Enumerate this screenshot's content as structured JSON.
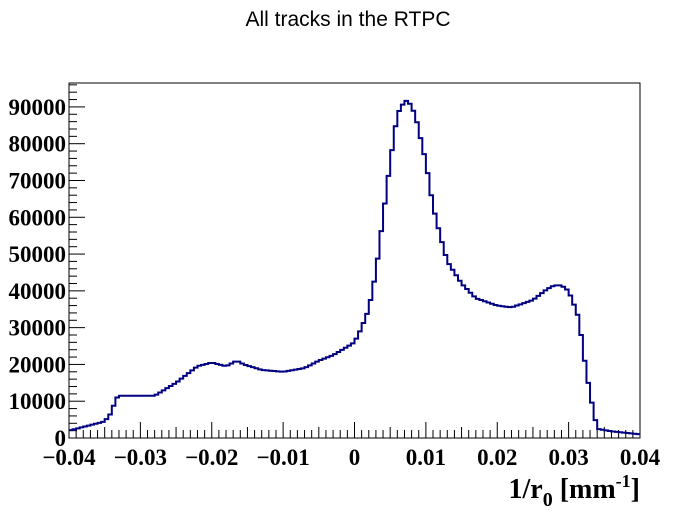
{
  "chart_data": {
    "type": "histogram",
    "title": "All tracks in the RTPC",
    "xlabel": "1/r",
    "xlabel_sub": "0",
    "xlabel_unit_open": " [mm",
    "xlabel_unit_sup": "-1",
    "xlabel_unit_close": "]",
    "ylabel": "",
    "xlim": [
      -0.04,
      0.04
    ],
    "ylim": [
      0,
      96500
    ],
    "grid": false,
    "x_ticks": [
      -0.04,
      -0.03,
      -0.02,
      -0.01,
      0,
      0.01,
      0.02,
      0.03,
      0.04
    ],
    "x_tick_labels": [
      "−0.04",
      "−0.03",
      "−0.02",
      "−0.01",
      "0",
      "0.01",
      "0.02",
      "0.03",
      "0.04"
    ],
    "y_ticks": [
      0,
      10000,
      20000,
      30000,
      40000,
      50000,
      60000,
      70000,
      80000,
      90000
    ],
    "y_tick_labels": [
      "0",
      "10000",
      "20000",
      "30000",
      "40000",
      "50000",
      "60000",
      "70000",
      "80000",
      "90000"
    ],
    "line_color": "#000080",
    "series": [
      {
        "x": [
          -0.04,
          -0.035,
          -0.034,
          -0.0335,
          -0.033,
          -0.032,
          -0.028,
          -0.025,
          -0.022,
          -0.02,
          -0.018,
          -0.0165,
          -0.0155,
          -0.013,
          -0.01,
          -0.007,
          -0.005,
          -0.003,
          0,
          0.001,
          0.002,
          0.003,
          0.004,
          0.005,
          0.006,
          0.007,
          0.0075,
          0.0085,
          0.01,
          0.011,
          0.012,
          0.013,
          0.015,
          0.017,
          0.02,
          0.022,
          0.025,
          0.027,
          0.028,
          0.029,
          0.03,
          0.031,
          0.0315,
          0.032,
          0.033,
          0.034,
          0.036,
          0.04
        ],
        "y": [
          2000,
          4500,
          7000,
          10500,
          11500,
          11500,
          11500,
          15000,
          19500,
          20500,
          19500,
          21000,
          20000,
          18500,
          18000,
          19000,
          21000,
          22500,
          26000,
          30000,
          35000,
          45000,
          60000,
          75000,
          88000,
          91500,
          91800,
          88000,
          75000,
          63000,
          55000,
          48000,
          42000,
          38000,
          36000,
          35500,
          37500,
          40500,
          41500,
          41500,
          40000,
          35000,
          32000,
          24000,
          12000,
          2500,
          1800,
          1000
        ]
      }
    ]
  }
}
